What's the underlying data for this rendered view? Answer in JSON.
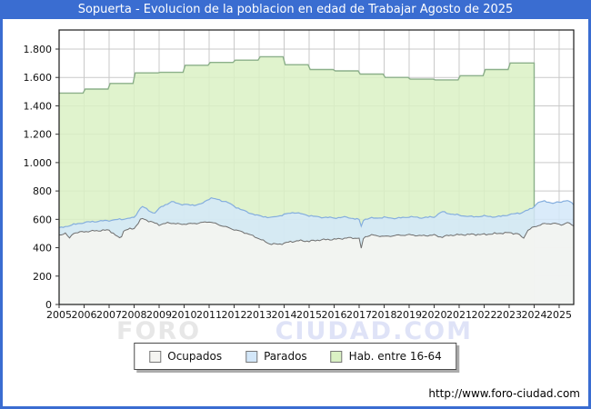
{
  "window": {
    "title": "Sopuerta - Evolucion de la poblacion en edad de Trabajar Agosto de 2025",
    "frame_color": "#3a6dd1"
  },
  "watermark": {
    "part1": "FORO",
    "part2": "CIUDAD.COM"
  },
  "footer": {
    "url": "http://www.foro-ciudad.com"
  },
  "chart_data": {
    "type": "area",
    "title": "Sopuerta - Evolucion de la poblacion en edad de Trabajar Agosto de 2025",
    "x_axis": {
      "tick_labels": [
        "2005",
        "2006",
        "2007",
        "2008",
        "2009",
        "2010",
        "2011",
        "2012",
        "2013",
        "2014",
        "2015",
        "2016",
        "2017",
        "2018",
        "2019",
        "2020",
        "2021",
        "2022",
        "2023",
        "2024",
        "2025"
      ],
      "range": [
        2005,
        2025.583
      ],
      "grid": true
    },
    "y_axis": {
      "tick_labels": [
        "0",
        "200",
        "400",
        "600",
        "800",
        "1.000",
        "1.200",
        "1.400",
        "1.600",
        "1.800"
      ],
      "tick_values": [
        0,
        200,
        400,
        600,
        800,
        1000,
        1200,
        1400,
        1600,
        1800
      ],
      "range": [
        0,
        1935
      ],
      "grid": true
    },
    "legend": {
      "position": "bottom-center",
      "items": [
        {
          "label": "Ocupados",
          "fill": "#f4f4f1",
          "stroke": "#6e6e6e"
        },
        {
          "label": "Parados",
          "fill": "#d3e7f9",
          "stroke": "#85aede"
        },
        {
          "label": "Hab. entre 16-64",
          "fill": "#daf1c4",
          "stroke": "#8cb08a"
        }
      ]
    },
    "series": {
      "hab_entre_16_64": {
        "note": "annual step series (padron), ends at 2024 boundary",
        "years": [
          2005,
          2006,
          2007,
          2008,
          2009,
          2010,
          2011,
          2012,
          2013,
          2014,
          2015,
          2016,
          2017,
          2018,
          2019,
          2020,
          2021,
          2022,
          2023
        ],
        "values": [
          1490,
          1518,
          1558,
          1632,
          1636,
          1686,
          1706,
          1722,
          1746,
          1690,
          1656,
          1646,
          1624,
          1600,
          1588,
          1583,
          1612,
          1656,
          1702
        ]
      },
      "ocupados": {
        "note": "monthly jagged line, top of gray area; anchors [year, persons]",
        "anchors": [
          [
            2005.0,
            488
          ],
          [
            2005.25,
            503
          ],
          [
            2005.42,
            464
          ],
          [
            2005.55,
            503
          ],
          [
            2006.0,
            513
          ],
          [
            2006.5,
            520
          ],
          [
            2007.0,
            524
          ],
          [
            2007.45,
            462
          ],
          [
            2007.6,
            524
          ],
          [
            2008.0,
            536
          ],
          [
            2008.3,
            607
          ],
          [
            2008.6,
            588
          ],
          [
            2009.0,
            562
          ],
          [
            2009.4,
            576
          ],
          [
            2009.8,
            566
          ],
          [
            2010.2,
            568
          ],
          [
            2010.6,
            574
          ],
          [
            2011.0,
            584
          ],
          [
            2011.5,
            556
          ],
          [
            2012.0,
            528
          ],
          [
            2012.5,
            502
          ],
          [
            2013.0,
            464
          ],
          [
            2013.4,
            428
          ],
          [
            2013.8,
            424
          ],
          [
            2014.2,
            440
          ],
          [
            2014.6,
            450
          ],
          [
            2015.0,
            446
          ],
          [
            2015.5,
            456
          ],
          [
            2016.0,
            459
          ],
          [
            2016.6,
            470
          ],
          [
            2017.0,
            467
          ],
          [
            2017.07,
            380
          ],
          [
            2017.18,
            476
          ],
          [
            2017.5,
            489
          ],
          [
            2018.0,
            479
          ],
          [
            2018.5,
            487
          ],
          [
            2019.0,
            491
          ],
          [
            2019.5,
            484
          ],
          [
            2020.0,
            489
          ],
          [
            2020.3,
            474
          ],
          [
            2020.6,
            488
          ],
          [
            2021.0,
            491
          ],
          [
            2021.5,
            494
          ],
          [
            2022.0,
            493
          ],
          [
            2022.5,
            500
          ],
          [
            2023.0,
            506
          ],
          [
            2023.4,
            496
          ],
          [
            2023.55,
            462
          ],
          [
            2023.75,
            522
          ],
          [
            2024.0,
            548
          ],
          [
            2024.4,
            569
          ],
          [
            2024.8,
            571
          ],
          [
            2025.1,
            562
          ],
          [
            2025.35,
            576
          ],
          [
            2025.583,
            556
          ]
        ]
      },
      "ocupados_plus_parados": {
        "note": "top of blue band (stacked): Parados = this series minus Ocupados",
        "anchors": [
          [
            2005.0,
            538
          ],
          [
            2005.5,
            560
          ],
          [
            2006.0,
            578
          ],
          [
            2006.5,
            586
          ],
          [
            2007.0,
            592
          ],
          [
            2007.5,
            601
          ],
          [
            2008.0,
            612
          ],
          [
            2008.3,
            694
          ],
          [
            2008.55,
            666
          ],
          [
            2008.8,
            642
          ],
          [
            2009.1,
            690
          ],
          [
            2009.5,
            724
          ],
          [
            2009.9,
            706
          ],
          [
            2010.3,
            700
          ],
          [
            2010.7,
            708
          ],
          [
            2011.05,
            752
          ],
          [
            2011.4,
            736
          ],
          [
            2011.7,
            724
          ],
          [
            2012.0,
            692
          ],
          [
            2012.5,
            652
          ],
          [
            2013.0,
            624
          ],
          [
            2013.5,
            612
          ],
          [
            2014.0,
            634
          ],
          [
            2014.4,
            650
          ],
          [
            2014.8,
            634
          ],
          [
            2015.2,
            620
          ],
          [
            2015.6,
            614
          ],
          [
            2016.0,
            610
          ],
          [
            2016.5,
            616
          ],
          [
            2017.0,
            597
          ],
          [
            2017.07,
            546
          ],
          [
            2017.18,
            600
          ],
          [
            2017.5,
            608
          ],
          [
            2018.0,
            613
          ],
          [
            2018.5,
            607
          ],
          [
            2019.0,
            618
          ],
          [
            2019.5,
            611
          ],
          [
            2020.0,
            617
          ],
          [
            2020.3,
            654
          ],
          [
            2020.7,
            637
          ],
          [
            2021.0,
            629
          ],
          [
            2021.5,
            618
          ],
          [
            2022.0,
            623
          ],
          [
            2022.5,
            617
          ],
          [
            2023.0,
            633
          ],
          [
            2023.5,
            647
          ],
          [
            2023.9,
            676
          ],
          [
            2024.15,
            718
          ],
          [
            2024.45,
            729
          ],
          [
            2024.75,
            713
          ],
          [
            2025.05,
            723
          ],
          [
            2025.3,
            735
          ],
          [
            2025.583,
            706
          ]
        ]
      }
    }
  }
}
